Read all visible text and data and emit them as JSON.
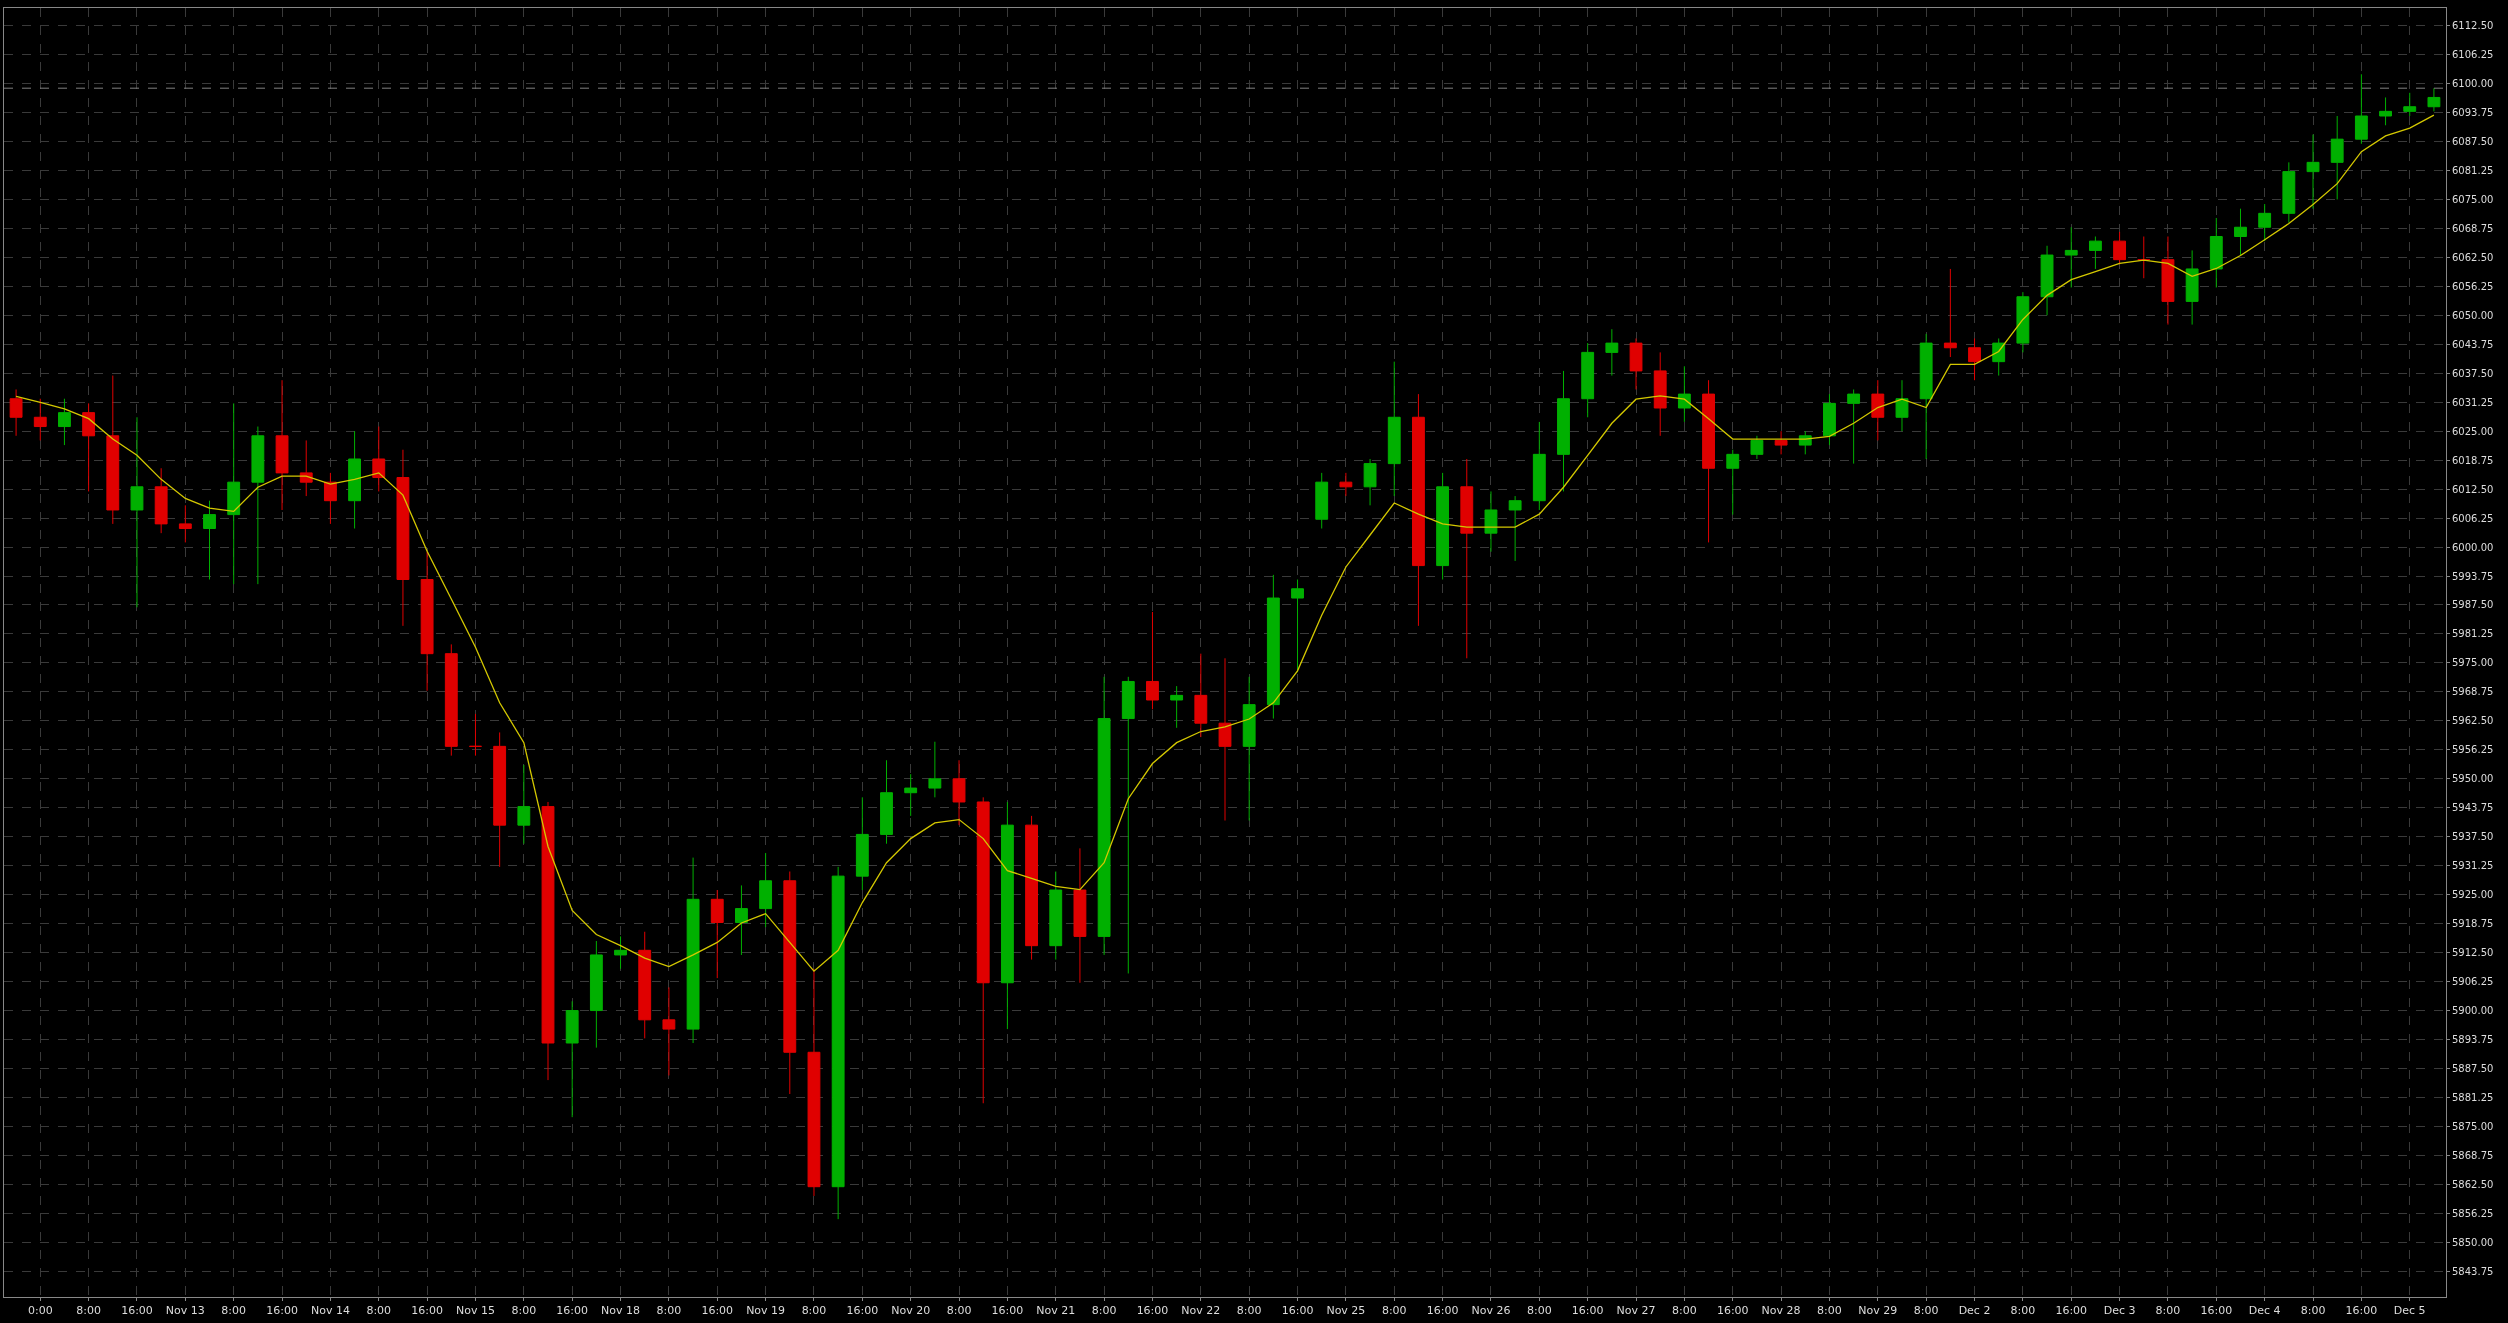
{
  "chart_data": {
    "type": "candlestick",
    "categories": [
      null,
      "0:00",
      null,
      "8:00",
      null,
      "16:00",
      null,
      "Nov 13",
      null,
      "8:00",
      null,
      "16:00",
      null,
      "Nov 14",
      null,
      "8:00",
      null,
      "16:00",
      null,
      "Nov 15",
      null,
      "8:00",
      null,
      "16:00",
      null,
      "Nov 18",
      null,
      "8:00",
      null,
      "16:00",
      null,
      "Nov 19",
      null,
      "8:00",
      null,
      "16:00",
      null,
      "Nov 20",
      null,
      "8:00",
      null,
      "16:00",
      null,
      "Nov 21",
      null,
      "8:00",
      null,
      "16:00",
      null,
      "Nov 22",
      null,
      "8:00",
      null,
      "16:00",
      null,
      "Nov 25",
      null,
      "8:00",
      null,
      "16:00",
      null,
      "Nov 26",
      null,
      "8:00",
      null,
      "16:00",
      null,
      "Nov 27",
      null,
      "8:00",
      null,
      "16:00",
      null,
      "Nov 28",
      null,
      "8:00",
      null,
      "Nov 29",
      null,
      "8:00",
      null,
      "Dec 2",
      null,
      "8:00",
      null,
      "16:00",
      null,
      "Dec 3",
      null,
      "8:00",
      null,
      "16:00",
      null,
      "Dec 4",
      null,
      "8:00",
      null,
      "16:00",
      null,
      "Dec 5",
      null
    ],
    "ohlc": [
      [
        6032,
        6034,
        6024,
        6028
      ],
      [
        6028,
        6032,
        6023,
        6026
      ],
      [
        6026,
        6032,
        6022,
        6029
      ],
      [
        6029,
        6031,
        6012,
        6024
      ],
      [
        6024,
        6037,
        6005,
        6008
      ],
      [
        6008,
        6028,
        5987,
        6013
      ],
      [
        6013,
        6017,
        6003,
        6005
      ],
      [
        6005,
        6009,
        6001,
        6004
      ],
      [
        6004,
        6010,
        5993,
        6007
      ],
      [
        6007,
        6031,
        5992,
        6014
      ],
      [
        6014,
        6026,
        5992,
        6024
      ],
      [
        6024,
        6036,
        6008,
        6016
      ],
      [
        6016,
        6023,
        6011,
        6014
      ],
      [
        6014,
        6016,
        6005,
        6010
      ],
      [
        6010,
        6025,
        6004,
        6019
      ],
      [
        6019,
        6026,
        6012,
        6015
      ],
      [
        6015,
        6021,
        5983,
        5993
      ],
      [
        5993,
        5999,
        5969,
        5977
      ],
      [
        5977,
        5979,
        5955,
        5957
      ],
      [
        5957,
        5964,
        5955,
        5957
      ],
      [
        5957,
        5960,
        5931,
        5940
      ],
      [
        5940,
        5953,
        5936,
        5944
      ],
      [
        5944,
        5945,
        5885,
        5893
      ],
      [
        5893,
        5902,
        5877,
        5900
      ],
      [
        5900,
        5915,
        5892,
        5912
      ],
      [
        5912,
        5916,
        5909,
        5913
      ],
      [
        5913,
        5917,
        5894,
        5898
      ],
      [
        5898,
        5905,
        5886,
        5896
      ],
      [
        5896,
        5933,
        5893,
        5924
      ],
      [
        5924,
        5926,
        5907,
        5919
      ],
      [
        5919,
        5927,
        5912,
        5922
      ],
      [
        5922,
        5934,
        5918,
        5928
      ],
      [
        5928,
        5930,
        5882,
        5891
      ],
      [
        5891,
        5909,
        5860,
        5862
      ],
      [
        5862,
        5931,
        5855,
        5929
      ],
      [
        5929,
        5946,
        5926,
        5938
      ],
      [
        5938,
        5954,
        5936,
        5947
      ],
      [
        5947,
        5951,
        5942,
        5948
      ],
      [
        5948,
        5958,
        5946,
        5950
      ],
      [
        5950,
        5954,
        5940,
        5945
      ],
      [
        5945,
        5946,
        5880,
        5906
      ],
      [
        5906,
        5945,
        5896,
        5940
      ],
      [
        5940,
        5942,
        5911,
        5914
      ],
      [
        5914,
        5930,
        5911,
        5926
      ],
      [
        5926,
        5935,
        5906,
        5916
      ],
      [
        5916,
        5972,
        5912,
        5963
      ],
      [
        5963,
        5972,
        5908,
        5971
      ],
      [
        5971,
        5986,
        5965,
        5967
      ],
      [
        5967,
        5970,
        5961,
        5968
      ],
      [
        5968,
        5977,
        5959,
        5962
      ],
      [
        5962,
        5976,
        5941,
        5957
      ],
      [
        5957,
        5972,
        5941,
        5966
      ],
      [
        5966,
        5994,
        5963,
        5989
      ],
      [
        5989,
        5993,
        5973,
        5991
      ],
      [
        6006,
        6016,
        6004,
        6014
      ],
      [
        6014,
        6016,
        6011,
        6013
      ],
      [
        6013,
        6019,
        6009,
        6018
      ],
      [
        6018,
        6040,
        6011,
        6028
      ],
      [
        6028,
        6033,
        5983,
        5996
      ],
      [
        5996,
        6016,
        5993,
        6013
      ],
      [
        6013,
        6019,
        5976,
        6003
      ],
      [
        6003,
        6012,
        5999,
        6008
      ],
      [
        6008,
        6011,
        5997,
        6010
      ],
      [
        6010,
        6027,
        6008,
        6020
      ],
      [
        6020,
        6038,
        6012,
        6032
      ],
      [
        6032,
        6044,
        6028,
        6042
      ],
      [
        6042,
        6047,
        6037,
        6044
      ],
      [
        6044,
        6045,
        6034,
        6038
      ],
      [
        6038,
        6042,
        6024,
        6030
      ],
      [
        6030,
        6039,
        6027,
        6033
      ],
      [
        6033,
        6036,
        6001,
        6017
      ],
      [
        6017,
        6021,
        6007,
        6020
      ],
      [
        6020,
        6024,
        6019,
        6023
      ],
      [
        6023,
        6025,
        6020,
        6022
      ],
      [
        6022,
        6025,
        6020,
        6024
      ],
      [
        6024,
        6033,
        6022,
        6031
      ],
      [
        6031,
        6034,
        6018,
        6033
      ],
      [
        6033,
        6036,
        6023,
        6028
      ],
      [
        6028,
        6036,
        6025,
        6032
      ],
      [
        6032,
        6046,
        6019,
        6044
      ],
      [
        6044,
        6060,
        6041,
        6043
      ],
      [
        6043,
        6045,
        6036,
        6040
      ],
      [
        6040,
        6045,
        6037,
        6044
      ],
      [
        6044,
        6055,
        6042,
        6054
      ],
      [
        6054,
        6065,
        6050,
        6063
      ],
      [
        6063,
        6069,
        6056,
        6064
      ],
      [
        6064,
        6067,
        6060,
        6066
      ],
      [
        6066,
        6068,
        6061,
        6062
      ],
      [
        6062,
        6067,
        6058,
        6062
      ],
      [
        6062,
        6067,
        6048,
        6053
      ],
      [
        6053,
        6064,
        6048,
        6060
      ],
      [
        6060,
        6071,
        6056,
        6067
      ],
      [
        6067,
        6073,
        6063,
        6069
      ],
      [
        6069,
        6074,
        6066,
        6072
      ],
      [
        6072,
        6083,
        6070,
        6081
      ],
      [
        6081,
        6089,
        6073,
        6083
      ],
      [
        6083,
        6093,
        6075,
        6088
      ],
      [
        6088,
        6102,
        6087,
        6093
      ],
      [
        6093,
        6097,
        6091,
        6094
      ],
      [
        6094,
        6098,
        6093,
        6095
      ],
      [
        6095,
        6099,
        6094,
        6097
      ]
    ],
    "colors": [
      "#e00000",
      "#e00000",
      "#00b000",
      "#e00000",
      "#e00000",
      "#00b000",
      "#e00000",
      "#e00000",
      "#00b000",
      "#00b000",
      "#00b000",
      "#e00000",
      "#e00000",
      "#e00000",
      "#00b000",
      "#e00000",
      "#e00000",
      "#e00000",
      "#e00000",
      "#e00000",
      "#e00000",
      "#00b000",
      "#e00000",
      "#00b000",
      "#00b000",
      "#00b000",
      "#e00000",
      "#e00000",
      "#00b000",
      "#e00000",
      "#00b000",
      "#00b000",
      "#e00000",
      "#e00000",
      "#00b000",
      "#00b000",
      "#00b000",
      "#00b000",
      "#00b000",
      "#e00000",
      "#e00000",
      "#00b000",
      "#e00000",
      "#00b000",
      "#e00000",
      "#00b000",
      "#00b000",
      "#e00000",
      "#00b000",
      "#e00000",
      "#e00000",
      "#00b000",
      "#00b000",
      "#00b000",
      "#00b000",
      "#e00000",
      "#00b000",
      "#00b000",
      "#e00000",
      "#00b000",
      "#e00000",
      "#00b000",
      "#00b000",
      "#00b000",
      "#00b000",
      "#00b000",
      "#00b000",
      "#e00000",
      "#e00000",
      "#00b000",
      "#e00000",
      "#00b000",
      "#00b000",
      "#e00000",
      "#00b000",
      "#00b000",
      "#00b000",
      "#e00000",
      "#00b000",
      "#00b000",
      "#e00000",
      "#e00000",
      "#00b000",
      "#00b000",
      "#00b000",
      "#00b000",
      "#00b000",
      "#e00000",
      "#e00000",
      "#e00000",
      "#00b000",
      "#00b000",
      "#00b000",
      "#00b000",
      "#00b000",
      "#00b000",
      "#00b000",
      "#00b000",
      "#00b000",
      "#00b000",
      "#00b000"
    ],
    "series": [
      {
        "type": "line",
        "color": "#d4c800",
        "values": [
          6032.5,
          6031.2,
          6029.8,
          6027.7,
          6023.3,
          6019.8,
          6014.6,
          6010.5,
          6008.4,
          6007.7,
          6012.9,
          6015.3,
          6015.3,
          6013.6,
          6014.6,
          6016.0,
          6011.2,
          5999.1,
          5988.8,
          5978.4,
          5966.4,
          5957.8,
          5935.4,
          5921.6,
          5916.4,
          5914.0,
          5911.3,
          5909.5,
          5912.0,
          5914.7,
          5918.9,
          5920.9,
          5914.7,
          5908.5,
          5913.0,
          5923.3,
          5931.9,
          5937.1,
          5940.5,
          5941.2,
          5937.1,
          5930.2,
          5928.5,
          5926.8,
          5926.1,
          5931.9,
          5945.7,
          5953.3,
          5957.8,
          5960.2,
          5961.2,
          5962.9,
          5966.4,
          5973.3,
          5985.3,
          5995.7,
          6002.6,
          6009.5,
          6007.1,
          6005.0,
          6004.3,
          6004.3,
          6004.3,
          6007.1,
          6012.9,
          6019.8,
          6026.7,
          6031.9,
          6032.6,
          6031.9,
          6027.7,
          6023.3,
          6023.3,
          6023.3,
          6023.3,
          6023.9,
          6026.7,
          6030.1,
          6031.9,
          6030.1,
          6039.4,
          6039.4,
          6042.2,
          6049.1,
          6054.3,
          6057.7,
          6059.4,
          6061.2,
          6061.9,
          6061.2,
          6058.4,
          6060.1,
          6062.9,
          6066.3,
          6069.8,
          6073.9,
          6078.4,
          6085.3,
          6088.7,
          6090.4,
          6093.2
        ]
      }
    ],
    "ylim": [
      5838.2,
      6116.3
    ],
    "yticks": [
      {
        "value": 5843.75,
        "label": "5843.75"
      },
      {
        "value": 5850,
        "label": "5850.00"
      },
      {
        "value": 5856.25,
        "label": "5856.25"
      },
      {
        "value": 5862.5,
        "label": "5862.50"
      },
      {
        "value": 5868.75,
        "label": "5868.75"
      },
      {
        "value": 5875,
        "label": "5875.00"
      },
      {
        "value": 5881.25,
        "label": "5881.25"
      },
      {
        "value": 5887.5,
        "label": "5887.50"
      },
      {
        "value": 5893.75,
        "label": "5893.75"
      },
      {
        "value": 5900,
        "label": "5900.00"
      },
      {
        "value": 5906.25,
        "label": "5906.25"
      },
      {
        "value": 5912.5,
        "label": "5912.50"
      },
      {
        "value": 5918.75,
        "label": "5918.75"
      },
      {
        "value": 5925,
        "label": "5925.00"
      },
      {
        "value": 5931.25,
        "label": "5931.25"
      },
      {
        "value": 5937.5,
        "label": "5937.50"
      },
      {
        "value": 5943.75,
        "label": "5943.75"
      },
      {
        "value": 5950,
        "label": "5950.00"
      },
      {
        "value": 5956.25,
        "label": "5956.25"
      },
      {
        "value": 5962.5,
        "label": "5962.50"
      },
      {
        "value": 5968.75,
        "label": "5968.75"
      },
      {
        "value": 5975,
        "label": "5975.00"
      },
      {
        "value": 5981.25,
        "label": "5981.25"
      },
      {
        "value": 5987.5,
        "label": "5987.50"
      },
      {
        "value": 5993.75,
        "label": "5993.75"
      },
      {
        "value": 6000,
        "label": "6000.00"
      },
      {
        "value": 6006.25,
        "label": "6006.25"
      },
      {
        "value": 6012.5,
        "label": "6012.50"
      },
      {
        "value": 6018.75,
        "label": "6018.75"
      },
      {
        "value": 6025,
        "label": "6025.00"
      },
      {
        "value": 6031.25,
        "label": "6031.25"
      },
      {
        "value": 6037.5,
        "label": "6037.50"
      },
      {
        "value": 6043.75,
        "label": "6043.75"
      },
      {
        "value": 6050,
        "label": "6050.00"
      },
      {
        "value": 6056.25,
        "label": "6056.25"
      },
      {
        "value": 6062.5,
        "label": "6062.50"
      },
      {
        "value": 6068.75,
        "label": "6068.75"
      },
      {
        "value": 6075,
        "label": "6075.00"
      },
      {
        "value": 6081.25,
        "label": "6081.25"
      },
      {
        "value": 6087.5,
        "label": "6087.50"
      },
      {
        "value": 6093.75,
        "label": "6093.75"
      },
      {
        "value": 6100,
        "label": "6100.00"
      },
      {
        "value": 6106.25,
        "label": "6106.25"
      },
      {
        "value": 6112.5,
        "label": "6112.50"
      }
    ],
    "ref_lines": [
      {
        "axis": "y",
        "value": 6099,
        "color": "#808080",
        "line_style": "dashed"
      }
    ],
    "grid": true
  }
}
